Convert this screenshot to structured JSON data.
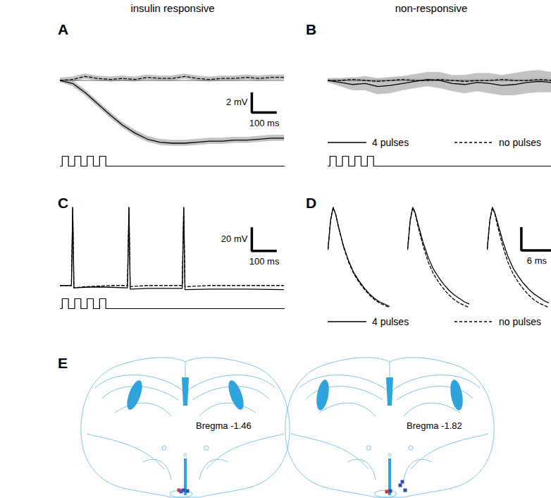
{
  "chart_data": [
    {
      "panel": "A",
      "type": "line",
      "title": "insulin responsive",
      "tick_labels": false,
      "x": [
        0,
        50,
        100,
        150,
        200,
        250,
        300,
        350,
        400,
        450,
        500,
        550,
        600,
        650,
        700,
        750,
        800,
        850,
        900
      ],
      "xlim": [
        0,
        900
      ],
      "ylim": [
        -7,
        1.5
      ],
      "baseline": 0,
      "series": [
        {
          "color": "#000000",
          "line_style": "solid",
          "values": [
            0,
            -0.3,
            -1.2,
            -2.3,
            -3.4,
            -4.4,
            -5.2,
            -5.8,
            -6.1,
            -6.2,
            -6.2,
            -6.1,
            -6.0,
            -6.0,
            -5.9,
            -5.9,
            -5.8,
            -5.7,
            -5.7
          ],
          "error": [
            0.2,
            0.3,
            0.3,
            0.3,
            0.3,
            0.3,
            0.3,
            0.3,
            0.3,
            0.3,
            0.3,
            0.3,
            0.3,
            0.3,
            0.3,
            0.3,
            0.3,
            0.3,
            0.3
          ]
        },
        {
          "color": "#000000",
          "line_style": "dashed",
          "values": [
            0,
            0.1,
            0.4,
            0.2,
            0.1,
            0.2,
            0.1,
            0.3,
            0.2,
            0.2,
            0.4,
            0.2,
            0.1,
            0.2,
            0.2,
            0.3,
            0.2,
            0.3,
            0.3
          ],
          "error": [
            0.25,
            0.25,
            0.25,
            0.25,
            0.25,
            0.25,
            0.25,
            0.25,
            0.25,
            0.25,
            0.25,
            0.25,
            0.25,
            0.25,
            0.25,
            0.25,
            0.25,
            0.25,
            0.25
          ]
        }
      ],
      "scalebar": {
        "y": 2,
        "y_label": "2 mV",
        "x": 100,
        "x_label": "100 ms"
      },
      "stimulus": {
        "start": [
          8,
          58,
          108,
          158
        ],
        "width": 25,
        "ylim": [
          0,
          1
        ]
      }
    },
    {
      "panel": "B",
      "type": "line",
      "title": "non-responsive",
      "tick_labels": false,
      "legend": "bottom",
      "x": [
        0,
        50,
        100,
        150,
        200,
        250,
        300,
        350,
        400,
        450,
        500,
        550,
        600,
        650,
        700,
        750,
        800,
        850,
        900
      ],
      "xlim": [
        0,
        900
      ],
      "ylim": [
        -7,
        1.5
      ],
      "baseline": 0,
      "series": [
        {
          "name": "4 pulses",
          "color": "#000000",
          "line_style": "solid",
          "values": [
            0,
            -0.2,
            -0.4,
            -0.3,
            -0.6,
            -0.5,
            -0.3,
            -0.1,
            0.1,
            0,
            -0.3,
            -0.4,
            -0.2,
            -0.3,
            -0.5,
            -0.4,
            -0.2,
            -0.1,
            -0.2
          ],
          "error": [
            0.2,
            0.4,
            0.6,
            0.7,
            0.8,
            0.8,
            0.7,
            0.7,
            0.7,
            0.8,
            0.8,
            0.9,
            0.9,
            1.0,
            1.0,
            1.1,
            1.1,
            1.1,
            1.0
          ]
        },
        {
          "name": "no pulses",
          "color": "#000000",
          "line_style": "dashed",
          "values": [
            0,
            0,
            0.1,
            0,
            -0.1,
            0,
            0.1,
            0,
            0,
            0.1,
            0,
            -0.1,
            0,
            0,
            0.1,
            0,
            0,
            0.1,
            0
          ],
          "error": [
            0.2,
            0.2,
            0.2,
            0.2,
            0.2,
            0.2,
            0.2,
            0.2,
            0.2,
            0.2,
            0.2,
            0.2,
            0.2,
            0.2,
            0.2,
            0.2,
            0.2,
            0.2,
            0.2
          ]
        }
      ],
      "stimulus": {
        "start": [
          8,
          58,
          108,
          158
        ],
        "width": 25,
        "ylim": [
          0,
          1
        ]
      }
    },
    {
      "panel": "C",
      "type": "line",
      "tick_labels": false,
      "xlim": [
        0,
        900
      ],
      "ylim": [
        -10,
        70
      ],
      "series": [
        {
          "color": "#000000",
          "line_style": "solid",
          "x": [
            0,
            45,
            50,
            55,
            100,
            150,
            200,
            270,
            276,
            281,
            350,
            490,
            496,
            501,
            600,
            750,
            900
          ],
          "values": [
            0,
            0,
            66,
            -2,
            -1.5,
            -1.2,
            -1.5,
            -2,
            66,
            -3,
            -2.5,
            -2.5,
            66,
            -3.5,
            -3,
            -3,
            -3.5
          ]
        },
        {
          "color": "#000000",
          "line_style": "dashed",
          "x": [
            0,
            45,
            50,
            55,
            100,
            200,
            270,
            276,
            281,
            350,
            490,
            496,
            501,
            600,
            900
          ],
          "values": [
            0,
            0,
            66,
            -2,
            -1,
            0,
            0,
            66,
            -1,
            0,
            0,
            66,
            -1,
            0,
            0
          ]
        }
      ],
      "scalebar": {
        "y": 20,
        "y_label": "20 mV",
        "x": 100,
        "x_label": "100 ms"
      },
      "stimulus": {
        "start": [
          8,
          58,
          108,
          158
        ],
        "width": 25,
        "ylim": [
          0,
          1
        ]
      }
    },
    {
      "panel": "D",
      "type": "line",
      "tick_labels": false,
      "legend": "bottom",
      "x": [
        0,
        0.5,
        1,
        1.5,
        2,
        3,
        4,
        5,
        6,
        7,
        8,
        9,
        10,
        11,
        12
      ],
      "xlim": [
        0,
        12
      ],
      "ylim": [
        -25,
        70
      ],
      "series": [
        {
          "name": "4 pulses",
          "color": "#000000",
          "line_style": "solid",
          "values": [
            [
              30,
              55,
              66,
              60,
              50,
              33,
              20,
              10,
              3,
              -3,
              -8,
              -12,
              -15,
              -17,
              -19
            ],
            [
              30,
              55,
              66,
              61,
              52,
              36,
              23,
              13,
              6,
              0,
              -5,
              -9,
              -12,
              -15,
              -17
            ],
            [
              30,
              55,
              66,
              61,
              53,
              37,
              24,
              14,
              7,
              1,
              -4,
              -8,
              -11,
              -14,
              -16
            ]
          ]
        },
        {
          "name": "no pulses",
          "color": "#000000",
          "line_style": "dashed",
          "values": [
            [
              30,
              55,
              66,
              60,
              50,
              32,
              19,
              9,
              2,
              -4,
              -9,
              -13,
              -16,
              -18,
              -20
            ],
            [
              30,
              55,
              66,
              60,
              50,
              33,
              19,
              9,
              2,
              -4,
              -9,
              -13,
              -16,
              -18,
              -20
            ],
            [
              30,
              55,
              66,
              60,
              50,
              33,
              19,
              9,
              2,
              -4,
              -9,
              -13,
              -16,
              -18,
              -20
            ]
          ]
        }
      ],
      "scalebar": {
        "y": 20,
        "x": 6,
        "x_label": "6 ms"
      }
    }
  ],
  "diagram": {
    "panel": "E",
    "sections": [
      {
        "label": "Bregma -1.46"
      },
      {
        "label": "Bregma -1.82"
      }
    ]
  }
}
